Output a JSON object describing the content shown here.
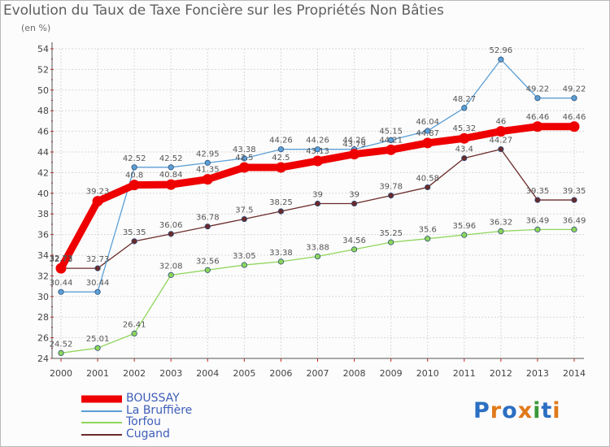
{
  "title": "Evolution du Taux de Taxe Foncière sur les Propriétés Non Bâties",
  "subtitle": "(en %)",
  "logo": {
    "text": "Proxiti",
    "colors": [
      "#2b6fc2",
      "#e07a1a",
      "#2b6fc2",
      "#e07a1a",
      "#3a9a3a",
      "#2b6fc2",
      "#e07a1a"
    ]
  },
  "chart_data": {
    "type": "line",
    "title": "Evolution du Taux de Taxe Foncière sur les Propriétés Non Bâties",
    "ylabel": "(en %)",
    "xlabel": "",
    "ylim": [
      24,
      54
    ],
    "yticks": [
      24,
      26,
      28,
      30,
      32,
      34,
      36,
      38,
      40,
      42,
      44,
      46,
      48,
      50,
      52,
      54
    ],
    "grid": true,
    "categories": [
      "2000",
      "2001",
      "2002",
      "2003",
      "2004",
      "2005",
      "2006",
      "2007",
      "2008",
      "2009",
      "2010",
      "2011",
      "2012",
      "2013",
      "2014"
    ],
    "series": [
      {
        "name": "BOUSSAY",
        "color": "#ee0000",
        "width": 9,
        "labels": [
          "32.73",
          "39.23",
          "40.8",
          "40.84",
          "41.35",
          "42.5",
          "42.5",
          "43.13",
          "43.79",
          "44.21",
          "44.87",
          "45.32",
          "46",
          "46.46",
          "46.46"
        ],
        "values": [
          32.73,
          39.23,
          40.8,
          40.84,
          41.35,
          42.5,
          42.5,
          43.13,
          43.79,
          44.21,
          44.87,
          45.32,
          46,
          46.46,
          46.46
        ]
      },
      {
        "name": "La Bruffière",
        "color": "#5b9fd6",
        "width": 1.3,
        "labels": [
          "30.44",
          "30.44",
          "42.52",
          "42.52",
          "42.95",
          "43.38",
          "44.26",
          "44.26",
          "44.26",
          "45.15",
          "46.04",
          "48.27",
          "52.96",
          "49.22",
          "49.22"
        ],
        "values": [
          30.44,
          30.44,
          42.52,
          42.52,
          42.95,
          43.38,
          44.26,
          44.26,
          44.26,
          45.15,
          46.04,
          48.27,
          52.96,
          49.22,
          49.22
        ]
      },
      {
        "name": "Torfou",
        "color": "#8fd65a",
        "width": 1.3,
        "labels": [
          "24.52",
          "25.01",
          "26.41",
          "32.08",
          "32.56",
          "33.05",
          "33.38",
          "33.88",
          "34.56",
          "35.25",
          "35.6",
          "35.96",
          "36.32",
          "36.49",
          "36.49"
        ],
        "values": [
          24.52,
          25.01,
          26.41,
          32.08,
          32.56,
          33.05,
          33.38,
          33.88,
          34.56,
          35.25,
          35.6,
          35.96,
          36.32,
          36.49,
          36.49
        ]
      },
      {
        "name": "Cugand",
        "color": "#6b2a2a",
        "width": 1.3,
        "labels": [
          "32.73",
          "32.73",
          "35.35",
          "36.06",
          "36.78",
          "37.5",
          "38.25",
          "39",
          "39",
          "39.78",
          "40.58",
          "43.4",
          "44.27",
          "39.35",
          "39.35"
        ],
        "values": [
          32.73,
          32.73,
          35.35,
          36.06,
          36.78,
          37.5,
          38.25,
          39,
          39,
          39.78,
          40.58,
          43.4,
          44.27,
          39.35,
          39.35
        ]
      }
    ]
  }
}
